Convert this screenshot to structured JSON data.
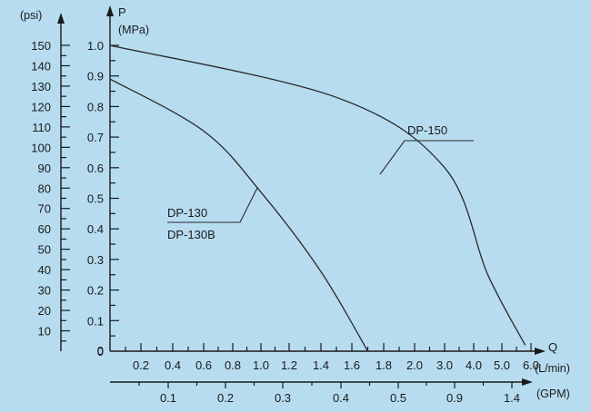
{
  "chart_data": {
    "type": "line",
    "colors": {
      "background": "#b7dcf0",
      "ink": "#1a1a1a"
    },
    "grid": false,
    "y_mpa": {
      "label_line1": "P",
      "label_line2": "(MPa)",
      "range": [
        0,
        1.0
      ],
      "ticks": [
        "0",
        "0.1",
        "0.2",
        "0.3",
        "0.4",
        "0.5",
        "0.6",
        "0.7",
        "0.8",
        "0.9",
        "1.0"
      ]
    },
    "y_psi": {
      "label": "(psi)",
      "range": [
        0,
        150
      ],
      "ticks": [
        "10",
        "20",
        "30",
        "40",
        "50",
        "60",
        "70",
        "80",
        "90",
        "100",
        "110",
        "120",
        "130",
        "140",
        "150"
      ]
    },
    "x_lmin": {
      "label": "Q",
      "unit": "(L/min)",
      "ticks": [
        "0.2",
        "0.4",
        "0.6",
        "0.8",
        "1.0",
        "1.2",
        "1.4",
        "1.6",
        "1.8",
        "2.0",
        "3.0",
        "4.0",
        "5.0",
        "6.0"
      ]
    },
    "x_gpm": {
      "unit": "(GPM)",
      "ticks": [
        "0.1",
        "0.2",
        "0.3",
        "0.4",
        "0.5",
        "0.9",
        "1.4"
      ]
    },
    "series": [
      {
        "name": "DP-150",
        "label_lines": [
          "DP-150"
        ],
        "points": [
          [
            0,
            1.0
          ],
          [
            1.5,
            0.83
          ],
          [
            3.0,
            0.6
          ],
          [
            4.5,
            0.25
          ],
          [
            5.8,
            0.02
          ]
        ]
      },
      {
        "name": "DP-130",
        "label_lines": [
          "DP-130",
          "DP-130B"
        ],
        "points": [
          [
            0,
            0.89
          ],
          [
            0.6,
            0.72
          ],
          [
            1.0,
            0.52
          ],
          [
            1.4,
            0.26
          ],
          [
            1.7,
            0.0
          ]
        ]
      }
    ]
  }
}
